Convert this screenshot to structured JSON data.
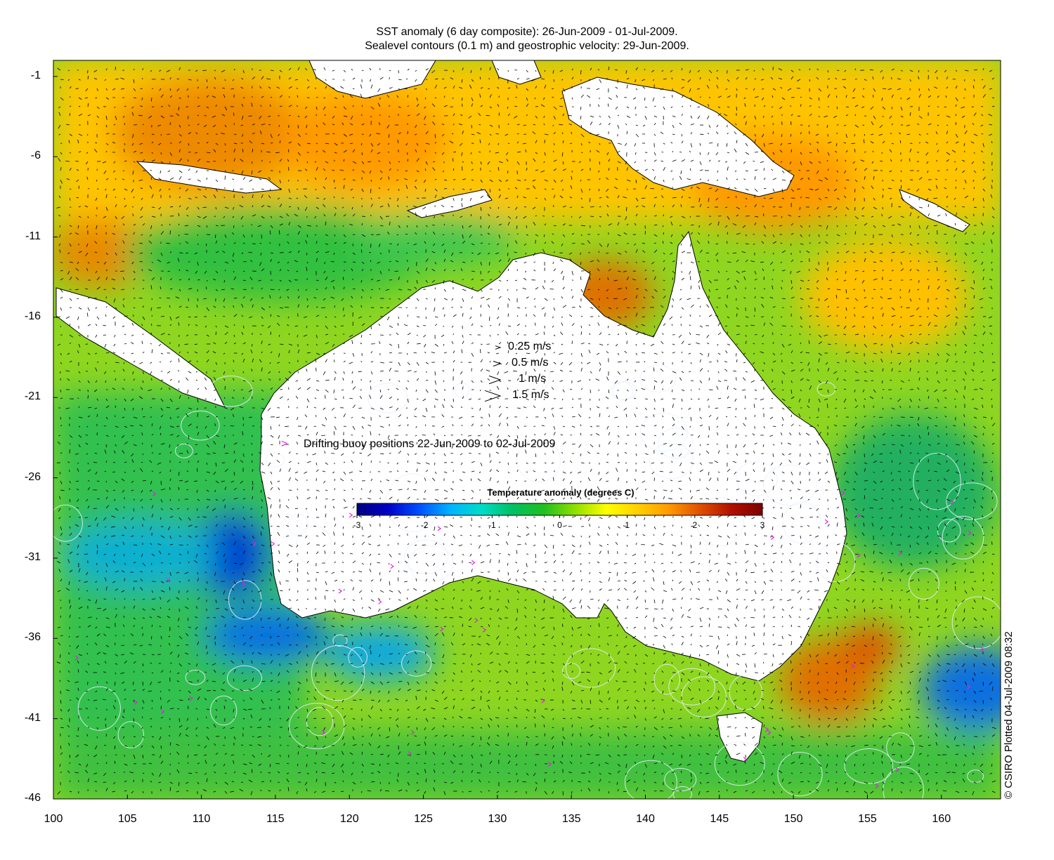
{
  "title_line1": "SST anomaly (6 day composite): 26-Jun-2009 - 01-Jul-2009.",
  "title_line2": "Sealevel contours (0.1 m) and geostrophic velocity: 29-Jun-2009.",
  "axes": {
    "y_ticks": [
      "-1",
      "-6",
      "-11",
      "-16",
      "-21",
      "-26",
      "-31",
      "-36",
      "-41",
      "-46"
    ],
    "x_ticks": [
      "100",
      "105",
      "110",
      "115",
      "120",
      "125",
      "130",
      "135",
      "140",
      "145",
      "150",
      "155",
      "160"
    ],
    "lon_range": [
      100,
      164
    ],
    "lat_range": [
      -46,
      0
    ]
  },
  "velocity_legend": [
    {
      "label": "0.25 m/s",
      "speed": 0.25
    },
    {
      "label": "0.5 m/s",
      "speed": 0.5
    },
    {
      "label": "1 m/s",
      "speed": 1
    },
    {
      "label": "1.5 m/s",
      "speed": 1.5
    }
  ],
  "buoy_legend": {
    "marker": ">",
    "label": "Drifting buoy positions 22-Jun-2009 to 02-Jul-2009",
    "color": "#e020e0"
  },
  "colorbar": {
    "title": "Temperature anomaly (degrees C)",
    "ticks": [
      "-3",
      "-2",
      "-1",
      "0",
      "1",
      "2",
      "3"
    ],
    "range": [
      -3,
      3
    ],
    "colors": [
      "#00007f",
      "#0000c8",
      "#0050ff",
      "#00b4ff",
      "#00dcc8",
      "#00c060",
      "#20c020",
      "#90e000",
      "#ffff00",
      "#ffd000",
      "#ff9a00",
      "#e05000",
      "#b01000",
      "#7f0000"
    ]
  },
  "credit": "© CSIRO Plotted 04-Jul-2009 08:32"
}
